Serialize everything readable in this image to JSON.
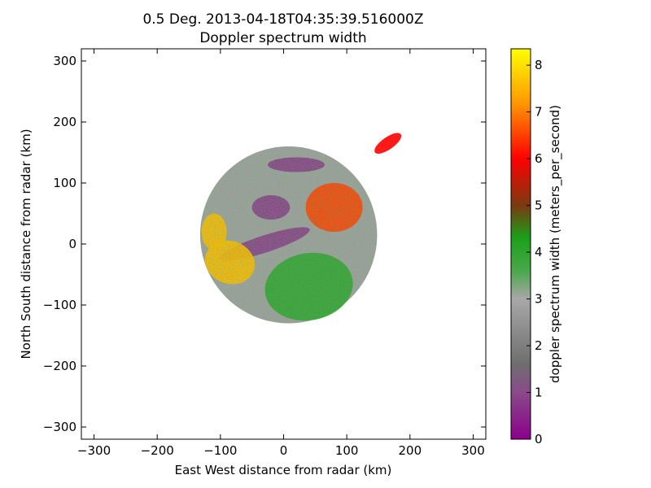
{
  "chart_data": {
    "type": "heatmap",
    "title": "0.5 Deg. 2013-04-18T04:35:39.516000Z",
    "subtitle": "Doppler spectrum width",
    "xlabel": "East West distance from radar (km)",
    "ylabel": "North South distance from radar (km)",
    "xlim": [
      -320,
      320
    ],
    "ylim": [
      -320,
      320
    ],
    "xticks": [
      -300,
      -200,
      -100,
      0,
      100,
      200,
      300
    ],
    "yticks": [
      -300,
      -200,
      -100,
      0,
      100,
      200,
      300
    ],
    "xtick_labels": [
      "−300",
      "−200",
      "−100",
      "0",
      "100",
      "200",
      "300"
    ],
    "ytick_labels": [
      "−300",
      "−200",
      "−100",
      "0",
      "100",
      "200",
      "300"
    ],
    "grid": false,
    "colorbar": {
      "label": "doppler spectrum width (meters_per_second)",
      "range": [
        0,
        8.35
      ],
      "ticks": [
        0,
        1,
        2,
        3,
        4,
        5,
        6,
        7,
        8
      ],
      "tick_labels": [
        "0",
        "1",
        "2",
        "3",
        "4",
        "5",
        "6",
        "7",
        "8"
      ],
      "stops": [
        {
          "value": 0.0,
          "color": "#8b008b"
        },
        {
          "value": 1.0,
          "color": "#8a4a8a"
        },
        {
          "value": 1.6,
          "color": "#6e6e6e"
        },
        {
          "value": 3.0,
          "color": "#a8a8a8"
        },
        {
          "value": 3.6,
          "color": "#4aa84a"
        },
        {
          "value": 4.3,
          "color": "#1aa01a"
        },
        {
          "value": 5.0,
          "color": "#7a3a10"
        },
        {
          "value": 6.0,
          "color": "#ff0000"
        },
        {
          "value": 7.2,
          "color": "#ff9900"
        },
        {
          "value": 8.35,
          "color": "#ffff00"
        }
      ]
    },
    "coverage": {
      "main_echo": {
        "center_km": [
          8,
          15
        ],
        "radius_km": 140
      },
      "regions": [
        {
          "name": "gray background",
          "value": 2.8
        },
        {
          "name": "purple streak",
          "value": 0.8
        },
        {
          "name": "west high-width",
          "value": 7.0
        },
        {
          "name": "southeast green",
          "value": 4.0
        },
        {
          "name": "northeast orange",
          "value": 6.5
        },
        {
          "name": "northeast cluster",
          "value": 6.0
        }
      ]
    }
  }
}
